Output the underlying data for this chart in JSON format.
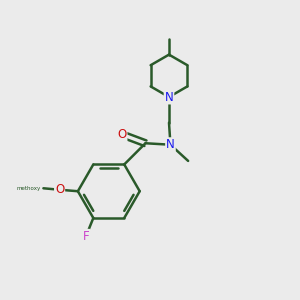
{
  "background_color": "#ebebeb",
  "bond_color": "#2a5a2a",
  "N_color": "#1a1aee",
  "O_color": "#cc1111",
  "F_color": "#cc44cc",
  "bond_width": 1.8,
  "figsize": [
    3.0,
    3.0
  ],
  "dpi": 100,
  "xlim": [
    0,
    10
  ],
  "ylim": [
    0,
    10
  ]
}
